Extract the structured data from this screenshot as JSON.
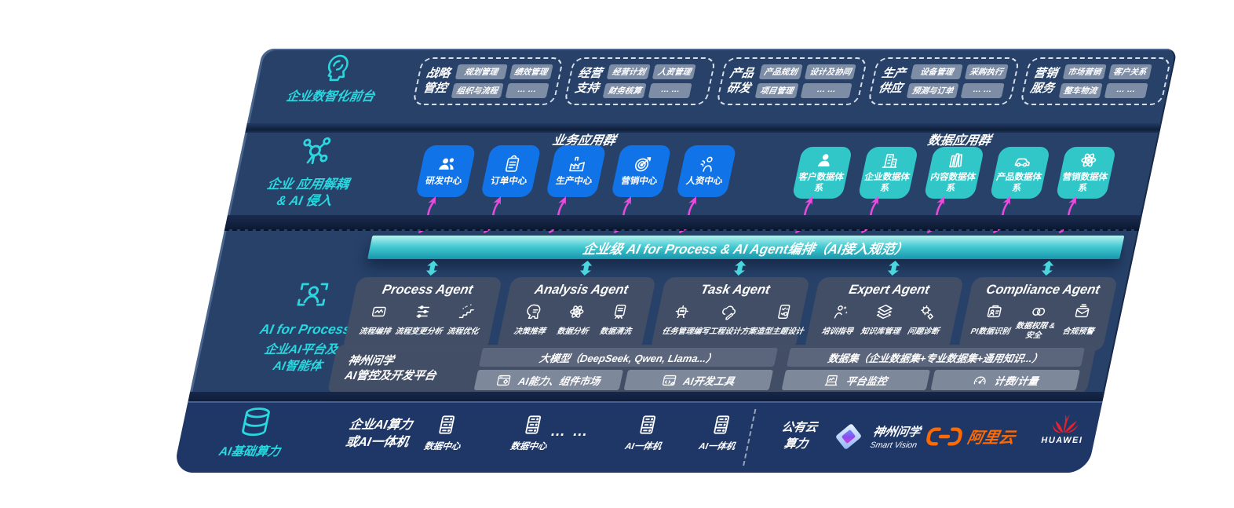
{
  "palette": {
    "navy": "#274169",
    "navy_dark": "#1F3766",
    "accent_teal": "#2BD7DF",
    "tile_blue": "#1173E8",
    "tile_teal": "#31C7C9",
    "banner_teal": "#43C9D1",
    "arrow_pink": "#E94BDD",
    "alicloud_orange": "#FF6A00",
    "huawei_red": "#E4232E"
  },
  "zone_front": {
    "label": "企业数智化前台",
    "icon": "head-brain",
    "groups": [
      {
        "title": [
          "战略",
          "管控"
        ],
        "chips": [
          "规划管理",
          "绩效管理",
          "组织与流程",
          "… …"
        ]
      },
      {
        "title": [
          "经营",
          "支持"
        ],
        "chips": [
          "经营计划",
          "人资管理",
          "财务核算",
          "… …"
        ]
      },
      {
        "title": [
          "产品",
          "研发"
        ],
        "chips": [
          "产品规划",
          "设计及协同",
          "项目管理",
          "… …"
        ]
      },
      {
        "title": [
          "生产",
          "供应"
        ],
        "chips": [
          "设备管理",
          "采购执行",
          "预测与订单",
          "… …"
        ]
      },
      {
        "title": [
          "营销",
          "服务"
        ],
        "chips": [
          "市场营销",
          "客户关系",
          "整车物流",
          "… …"
        ]
      }
    ]
  },
  "zone_apps": {
    "label": [
      "企业 应用解耦",
      "& AI 侵入"
    ],
    "icon": "molecule",
    "business": {
      "title": "业务应用群",
      "tiles": [
        {
          "icon": "team",
          "label": "研发中心"
        },
        {
          "icon": "clipboard",
          "label": "订单中心"
        },
        {
          "icon": "factory",
          "label": "生产中心"
        },
        {
          "icon": "target",
          "label": "营销中心"
        },
        {
          "icon": "hr-people",
          "label": "人资中心"
        }
      ]
    },
    "data": {
      "title": "数据应用群",
      "tiles": [
        {
          "icon": "person",
          "label": "客户数据体系"
        },
        {
          "icon": "building",
          "label": "企业数据体系"
        },
        {
          "icon": "books",
          "label": "内容数据体系"
        },
        {
          "icon": "car",
          "label": "产品数据体系"
        },
        {
          "icon": "atom",
          "label": "营销数据体系"
        }
      ]
    }
  },
  "zone_ai": {
    "label": [
      "AI for Process",
      "企业AI平台及",
      "AI智能体"
    ],
    "icon": "scan-person",
    "banner": "企业级 AI for Process & AI Agent编排（AI接入规范）",
    "agents": [
      {
        "title": "Process Agent",
        "items": [
          {
            "icon": "flow",
            "label": "流程编排"
          },
          {
            "icon": "sliders",
            "label": "流程变更分析"
          },
          {
            "icon": "optimize",
            "label": "流程优化"
          }
        ]
      },
      {
        "title": "Analysis Agent",
        "items": [
          {
            "icon": "decision",
            "label": "决策推荐"
          },
          {
            "icon": "atom",
            "label": "数据分析"
          },
          {
            "icon": "clean",
            "label": "数据清洗"
          }
        ]
      },
      {
        "title": "Task Agent",
        "items": [
          {
            "icon": "robot",
            "label": "任务管理"
          },
          {
            "icon": "cloud-pen",
            "label": "编写工程设计方案"
          },
          {
            "icon": "design-board",
            "label": "造型主题设计"
          }
        ]
      },
      {
        "title": "Expert Agent",
        "items": [
          {
            "icon": "training",
            "label": "培训指导"
          },
          {
            "icon": "layers",
            "label": "知识库管理"
          },
          {
            "icon": "diagnose",
            "label": "问题诊断"
          }
        ]
      },
      {
        "title": "Compliance Agent",
        "items": [
          {
            "icon": "id-card",
            "label": "PI数据识别"
          },
          {
            "icon": "rings",
            "label": "数据权限 & 安全"
          },
          {
            "icon": "alert-mail",
            "label": "合规预警"
          }
        ]
      }
    ],
    "platform": {
      "label": [
        "神州问学",
        "AI管控及开发平台"
      ],
      "model_bar": "大模型（DeepSeek, Qwen, Llama...）",
      "dataset_bar": "数据集（企业数据集+专业数据集+通用知识...）",
      "cells": [
        {
          "icon": "component-market",
          "label": "AI能力、组件市场"
        },
        {
          "icon": "dev-tools",
          "label": "AI开发工具"
        },
        {
          "icon": "monitor",
          "label": "平台监控"
        },
        {
          "icon": "gauge",
          "label": "计费/计量"
        }
      ]
    }
  },
  "zone_infra": {
    "label": "AI基础算力",
    "icon": "database",
    "compute_label": [
      "企业AI算力",
      "或AI一体机"
    ],
    "nodes": [
      {
        "icon": "server",
        "label": "数据中心"
      },
      {
        "icon": "server",
        "label": "数据中心"
      },
      {
        "icon": "server",
        "label": "AI一体机"
      },
      {
        "icon": "server",
        "label": "AI一体机"
      }
    ],
    "dots": "… …",
    "public_cloud": [
      "公有云",
      "算力"
    ],
    "partners": [
      {
        "icon": "sv-logo",
        "name": "神州问学",
        "sub": "Smart Vision"
      },
      {
        "icon": "alicloud",
        "name": "阿里云"
      },
      {
        "icon": "huawei",
        "name": "HUAWEI"
      }
    ]
  }
}
